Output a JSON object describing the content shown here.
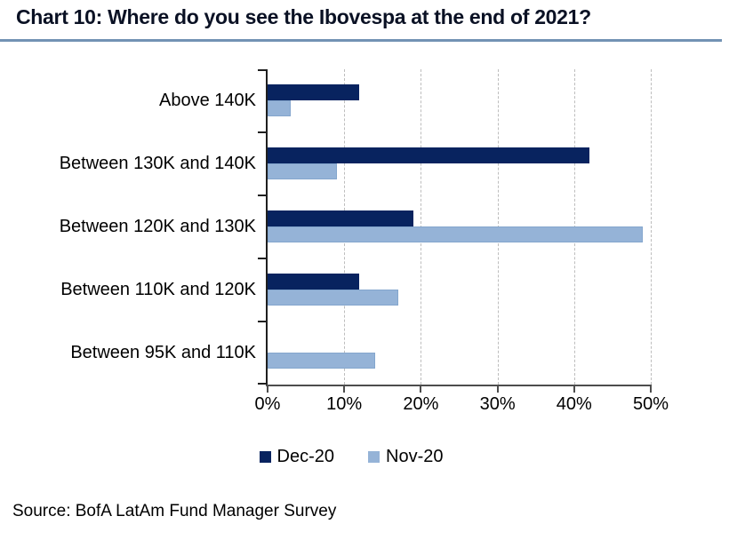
{
  "source": "Source: BofA LatAm Fund Manager Survey",
  "colors": {
    "title_text": "#0a1124",
    "title_rule": "#7292b4",
    "gridline": "#bdbdbd",
    "axis": "#1f1f1f"
  },
  "chart_data": {
    "type": "bar",
    "orientation": "horizontal",
    "title": "Chart 10: Where do you see the Ibovespa at the end of 2021?",
    "categories": [
      "Above 140K",
      "Between 130K and 140K",
      "Between 120K and 130K",
      "Between 110K and 120K",
      "Between 95K and 110K"
    ],
    "series": [
      {
        "name": "Dec-20",
        "color": "#08235f",
        "values": [
          12,
          42,
          19,
          12,
          0
        ]
      },
      {
        "name": "Nov-20",
        "color": "#95b3d7",
        "values": [
          3,
          9,
          49,
          17,
          14
        ]
      }
    ],
    "x_ticks": [
      "0%",
      "10%",
      "20%",
      "30%",
      "40%",
      "50%"
    ],
    "xlim": [
      0,
      50
    ],
    "grid": "vertical-dashed",
    "legend_position": "bottom-center"
  }
}
